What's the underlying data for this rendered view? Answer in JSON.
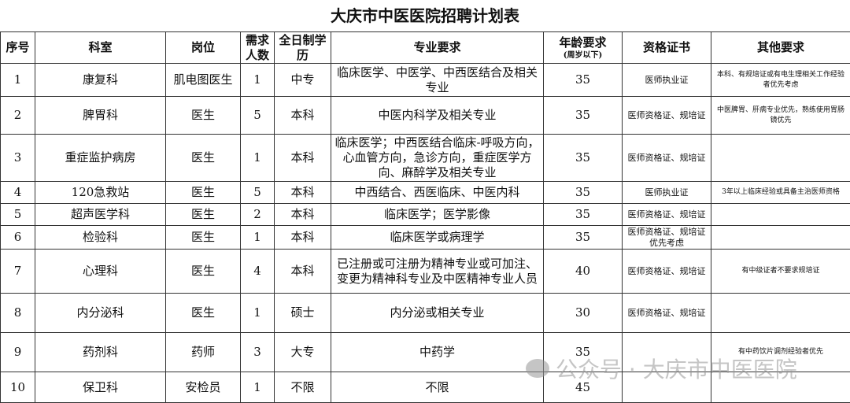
{
  "title": "大庆市中医医院招聘计划表",
  "headers": {
    "no": "序号",
    "dept": "科室",
    "post": "岗位",
    "count": "需求人数",
    "edu": "全日制学历",
    "major": "专业要求",
    "age": "年龄要求",
    "age_sub": "(周岁以下)",
    "cert": "资格证书",
    "other": "其他要求"
  },
  "rows": [
    {
      "no": "1",
      "dept": "康复科",
      "post": "肌电图医生",
      "count": "1",
      "edu": "中专",
      "major": "临床医学、中医学、中西医结合及相关专业",
      "age": "35",
      "cert": "医师执业证",
      "other": "本科、有规培证或有电生理相关工作经验者优先考虑"
    },
    {
      "no": "2",
      "dept": "脾胃科",
      "post": "医生",
      "count": "5",
      "edu": "本科",
      "major": "中医内科学及相关专业",
      "age": "35",
      "cert": "医师资格证、规培证",
      "other": "中医脾胃、肝病专业优先，熟练使用胃肠镜优先"
    },
    {
      "no": "3",
      "dept": "重症监护病房",
      "post": "医生",
      "count": "1",
      "edu": "本科",
      "major": "临床医学；中西医结合临床-呼吸方向，心血管方向，急诊方向，重症医学方向、麻醉学及相关专业",
      "age": "35",
      "cert": "医师资格证、规培证",
      "other": ""
    },
    {
      "no": "4",
      "dept": "120急救站",
      "post": "医生",
      "count": "5",
      "edu": "本科",
      "major": "中西结合、西医临床、中医内科",
      "age": "35",
      "cert": "医师执业证",
      "other": "3年以上临床经验或具备主治医师资格"
    },
    {
      "no": "5",
      "dept": "超声医学科",
      "post": "医生",
      "count": "2",
      "edu": "本科",
      "major": "临床医学；医学影像",
      "age": "35",
      "cert": "医师资格证、规培证",
      "other": ""
    },
    {
      "no": "6",
      "dept": "检验科",
      "post": "医生",
      "count": "1",
      "edu": "本科",
      "major": "临床医学或病理学",
      "age": "35",
      "cert": "医师资格证、规培证优先考虑",
      "other": ""
    },
    {
      "no": "7",
      "dept": "心理科",
      "post": "医生",
      "count": "4",
      "edu": "本科",
      "major": "已注册或可注册为精神专业或可加注、变更为精神科专业及中医精神专业人员",
      "age": "40",
      "cert": "医师资格证、规培证",
      "other": "有中级证者不要求规培证"
    },
    {
      "no": "8",
      "dept": "内分泌科",
      "post": "医生",
      "count": "1",
      "edu": "硕士",
      "major": "内分泌或相关专业",
      "age": "30",
      "cert": "医师资格证、规培证",
      "other": ""
    },
    {
      "no": "9",
      "dept": "药剂科",
      "post": "药师",
      "count": "3",
      "edu": "大专",
      "major": "中药学",
      "age": "35",
      "cert": "",
      "other": "有中药饮片调剂经验者优先"
    },
    {
      "no": "10",
      "dept": "保卫科",
      "post": "安检员",
      "count": "1",
      "edu": "不限",
      "major": "不限",
      "age": "45",
      "cert": "",
      "other": ""
    }
  ],
  "watermark": "公众号 · 大庆市中医医院"
}
